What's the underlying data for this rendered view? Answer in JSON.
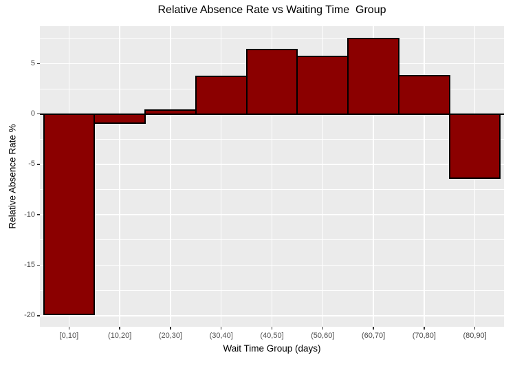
{
  "chart_data": {
    "type": "bar",
    "title": "Relative Absence Rate vs Waiting Time  Group",
    "xlabel": "Wait Time Group (days)",
    "ylabel": "Relative Absence Rate %",
    "categories": [
      "[0,10]",
      "(10,20]",
      "(20,30]",
      "(30,40]",
      "(40,50]",
      "(50,60]",
      "(60,70]",
      "(70,80]",
      "(80,90]"
    ],
    "values": [
      -19.9,
      -0.9,
      0.4,
      3.7,
      6.4,
      5.7,
      7.5,
      3.8,
      -6.4
    ],
    "ylim": [
      -21.1,
      8.7
    ],
    "yticks_major": [
      5,
      0,
      -5,
      -10,
      -15,
      -20
    ],
    "yticks_minor": [
      7.5,
      2.5,
      -2.5,
      -7.5,
      -12.5,
      -17.5
    ],
    "zero_line_y": 0,
    "grid": "on",
    "legend_position": "none",
    "colors": {
      "bar_fill": "#8B0000",
      "bar_border": "#000000",
      "panel_background": "#EBEBEB",
      "gridline": "#FFFFFF",
      "tick_label": "#4D4D4D",
      "axis_title": "#000000",
      "title": "#000000",
      "figure_background": "#FFFFFF"
    }
  }
}
